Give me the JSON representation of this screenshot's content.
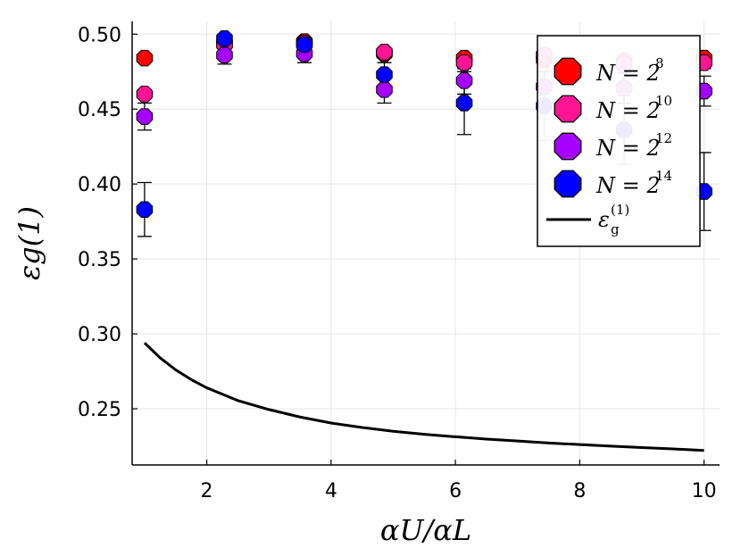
{
  "chart_data": {
    "type": "scatter",
    "title": "",
    "xlabel": "αU/αL",
    "ylabel": "εg(1)",
    "xlim": [
      0.8,
      10.25
    ],
    "ylim": [
      0.2125,
      0.5085
    ],
    "grid": true,
    "legend_position": "top-right",
    "xticks": [
      2,
      4,
      6,
      8,
      10
    ],
    "xtick_labels": [
      "2",
      "4",
      "6",
      "8",
      "10"
    ],
    "yticks": [
      0.25,
      0.3,
      0.35,
      0.4,
      0.45,
      0.5
    ],
    "ytick_labels": [
      "0.25",
      "0.30",
      "0.35",
      "0.40",
      "0.45",
      "0.50"
    ],
    "x": [
      1.0,
      2.286,
      3.571,
      4.857,
      6.143,
      7.429,
      8.714,
      10.0
    ],
    "series": [
      {
        "name": "N = 2^8",
        "legend_base": "N = 2",
        "legend_exp": "8",
        "color": "#ff0000",
        "values": [
          0.484,
          0.494,
          0.495,
          0.487,
          0.484,
          0.483,
          0.482,
          0.484
        ],
        "err": [
          0.002,
          0.002,
          0.002,
          0.003,
          0.003,
          0.003,
          0.003,
          0.003
        ]
      },
      {
        "name": "N = 2^10",
        "legend_base": "N = 2",
        "legend_exp": "10",
        "color": "#ff1493",
        "values": [
          0.46,
          0.493,
          0.494,
          0.488,
          0.481,
          0.486,
          0.48,
          0.481
        ],
        "err": [
          0.003,
          0.003,
          0.003,
          0.003,
          0.004,
          0.004,
          0.004,
          0.004
        ]
      },
      {
        "name": "N = 2^12",
        "legend_base": "N = 2",
        "legend_exp": "12",
        "color": "#a600ff",
        "values": [
          0.445,
          0.486,
          0.487,
          0.463,
          0.469,
          0.465,
          0.464,
          0.462
        ],
        "err": [
          0.009,
          0.006,
          0.006,
          0.009,
          0.009,
          0.01,
          0.01,
          0.01
        ]
      },
      {
        "name": "N = 2^14",
        "legend_base": "N = 2",
        "legend_exp": "14",
        "color": "#0000ff",
        "values": [
          0.383,
          0.497,
          0.493,
          0.473,
          0.454,
          0.452,
          0.436,
          0.395
        ],
        "err": [
          0.018,
          0.003,
          0.005,
          0.008,
          0.021,
          0.023,
          0.023,
          0.026
        ]
      }
    ],
    "curve": {
      "name": "εg(1)",
      "legend_base": "ε",
      "legend_sub": "g",
      "legend_sup": "(1)",
      "color": "#000000",
      "x": [
        1.0,
        1.25,
        1.5,
        1.75,
        2.0,
        2.5,
        3.0,
        3.5,
        4.0,
        4.5,
        5.0,
        5.5,
        6.0,
        6.5,
        7.0,
        7.5,
        8.0,
        8.5,
        9.0,
        9.5,
        10.0
      ],
      "y": [
        0.294,
        0.284,
        0.276,
        0.2695,
        0.264,
        0.2555,
        0.2495,
        0.2445,
        0.2405,
        0.2375,
        0.235,
        0.233,
        0.2313,
        0.2298,
        0.2285,
        0.2272,
        0.2261,
        0.2251,
        0.2241,
        0.2232,
        0.2222
      ]
    }
  }
}
